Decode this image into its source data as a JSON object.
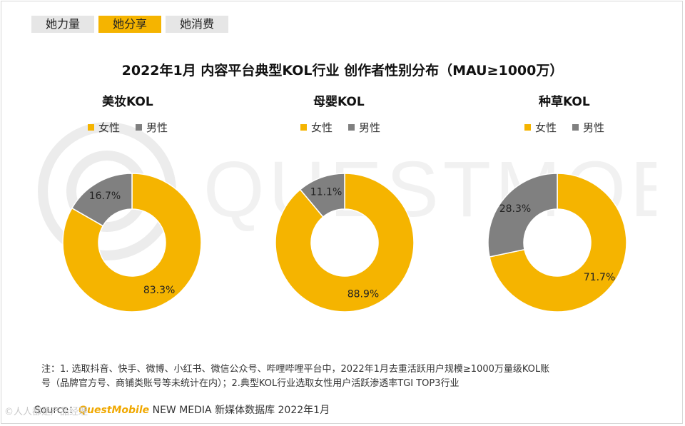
{
  "tabs": [
    {
      "label": "她力量",
      "active": false
    },
    {
      "label": "她分享",
      "active": true
    },
    {
      "label": "她消费",
      "active": false
    }
  ],
  "title": "2022年1月 内容平台典型KOL行业 创作者性别分布（MAU≥1000万）",
  "watermark": {
    "text": "QUESTMOBILE"
  },
  "colors": {
    "female": "#F5B400",
    "male": "#808080"
  },
  "chart_data": [
    {
      "type": "pie",
      "title": "美妆KOL",
      "legend": [
        "女性",
        "男性"
      ],
      "legend_placement": "top",
      "categories": [
        "女性",
        "男性"
      ],
      "values": [
        83.3,
        16.7
      ],
      "labels": [
        "83.3%",
        "16.7%"
      ]
    },
    {
      "type": "pie",
      "title": "母婴KOL",
      "legend": [
        "女性",
        "男性"
      ],
      "legend_placement": "top",
      "categories": [
        "女性",
        "男性"
      ],
      "values": [
        88.9,
        11.1
      ],
      "labels": [
        "88.9%",
        "11.1%"
      ]
    },
    {
      "type": "pie",
      "title": "种草KOL",
      "legend": [
        "女性",
        "男性"
      ],
      "legend_placement": "top",
      "categories": [
        "女性",
        "男性"
      ],
      "values": [
        71.7,
        28.3
      ],
      "labels": [
        "71.7%",
        "28.3%"
      ]
    }
  ],
  "footnote": {
    "line1": "注：1. 选取抖音、快手、微博、小红书、微信公众号、哔哩哔哩平台中，2022年1月去重活跃用户规模≥1000万量级KOL账",
    "line2": "号（品牌官方号、商铺类账号等未统计在内）；2.典型KOL行业选取女性用户活跃渗透率TGI TOP3行业"
  },
  "source": {
    "prefix": "Source：",
    "brand": "QuestMobile",
    "suffix": " NEW MEDIA 新媒体数据库 2022年1月"
  },
  "corner_mark": "©人人都是产品经理"
}
